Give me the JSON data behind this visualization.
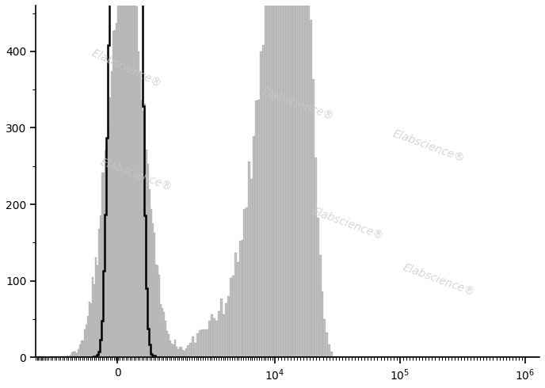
{
  "title": "",
  "xlabel": "",
  "ylabel": "",
  "ylim": [
    0,
    460
  ],
  "yticks": [
    0,
    100,
    200,
    300,
    400
  ],
  "watermark_text": "Elabscience",
  "watermark_color": "#cccccc",
  "background_color": "#ffffff",
  "plot_background": "#ffffff",
  "filled_histogram_color": "#c0c0c0",
  "filled_histogram_edge": "#999999",
  "unfilled_histogram_color": "black",
  "linthresh": 2000,
  "linscale": 0.5,
  "xlim_low": -2500,
  "xlim_high": 1300000
}
